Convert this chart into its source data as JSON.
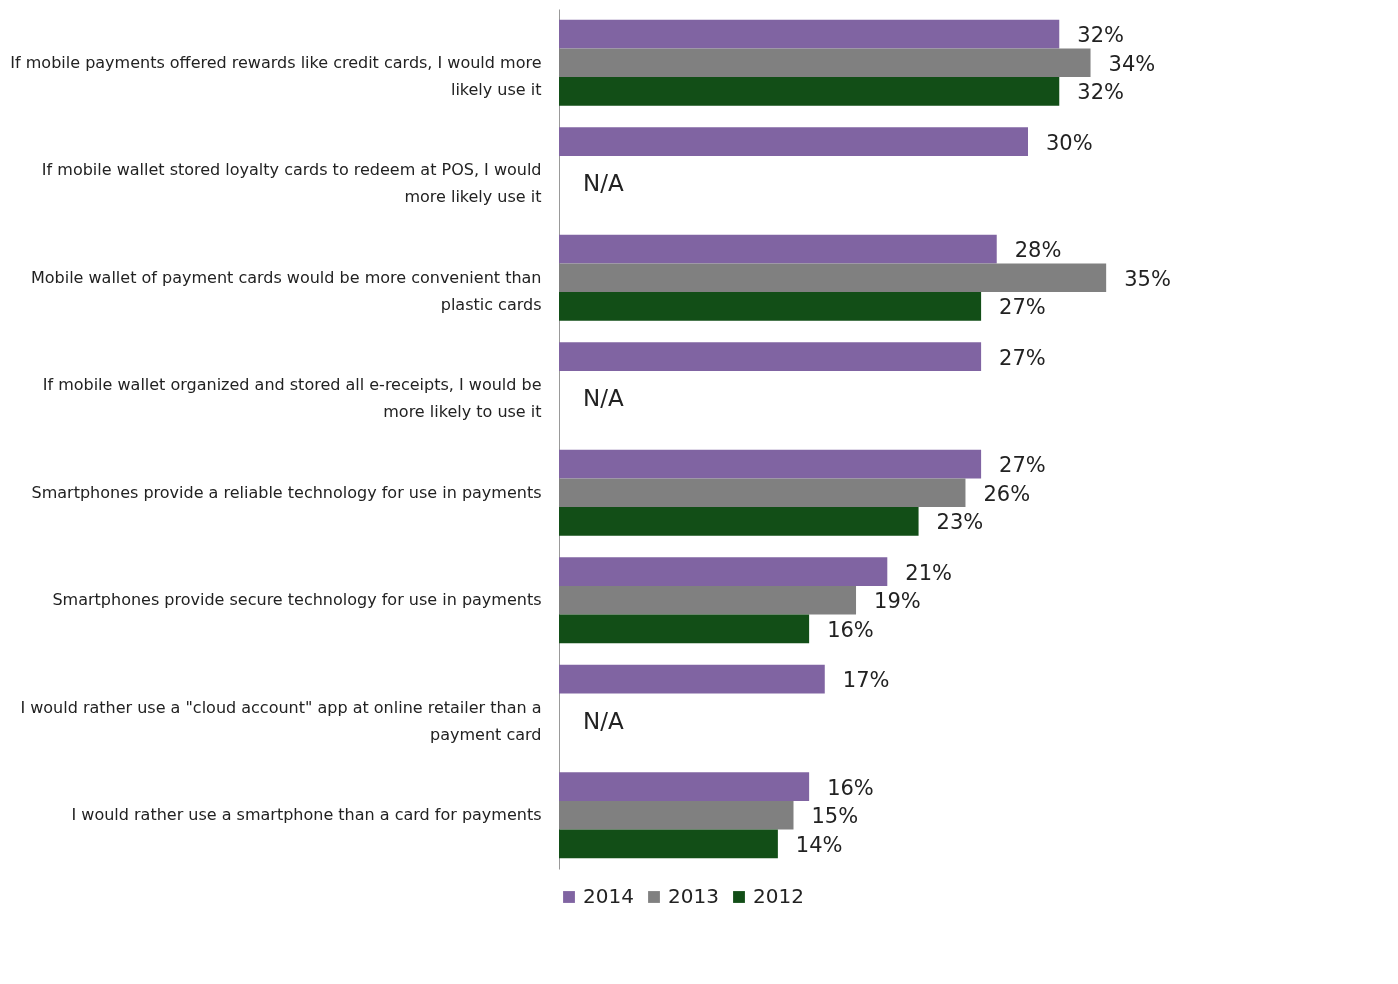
{
  "chart_data": {
    "type": "bar",
    "orientation": "horizontal",
    "legend": "bottom",
    "categories": [
      "If mobile payments offered rewards like credit cards, I would more likely use it",
      "If mobile wallet stored loyalty cards to redeem at POS, I would more likely use it",
      "Mobile wallet of payment cards would be more convenient than plastic cards",
      "If mobile wallet organized and stored all e-receipts, I would be more likely to use it",
      "Smartphones provide a reliable technology for use in payments",
      "Smartphones provide secure technology for use in payments",
      "I would rather use a \"cloud account\" app at online retailer than a payment card",
      "I would rather use a smartphone than a card for payments"
    ],
    "series": [
      {
        "name": "2014",
        "color": "#8064a2",
        "values": [
          32,
          30,
          28,
          27,
          27,
          21,
          17,
          16
        ],
        "value_labels": [
          "32%",
          "30%",
          "28%",
          "27%",
          "27%",
          "21%",
          "17%",
          "16%"
        ]
      },
      {
        "name": "2013",
        "color": "#808080",
        "values": [
          34,
          null,
          35,
          null,
          26,
          19,
          null,
          15
        ],
        "value_labels": [
          "34%",
          "N/A",
          "35%",
          "N/A",
          "26%",
          "19%",
          "N/A",
          "15%"
        ]
      },
      {
        "name": "2012",
        "color": "#124e17",
        "values": [
          32,
          null,
          27,
          null,
          23,
          16,
          null,
          14
        ],
        "value_labels": [
          "32%",
          null,
          "27%",
          null,
          "23%",
          "16%",
          null,
          "14%"
        ]
      }
    ]
  }
}
